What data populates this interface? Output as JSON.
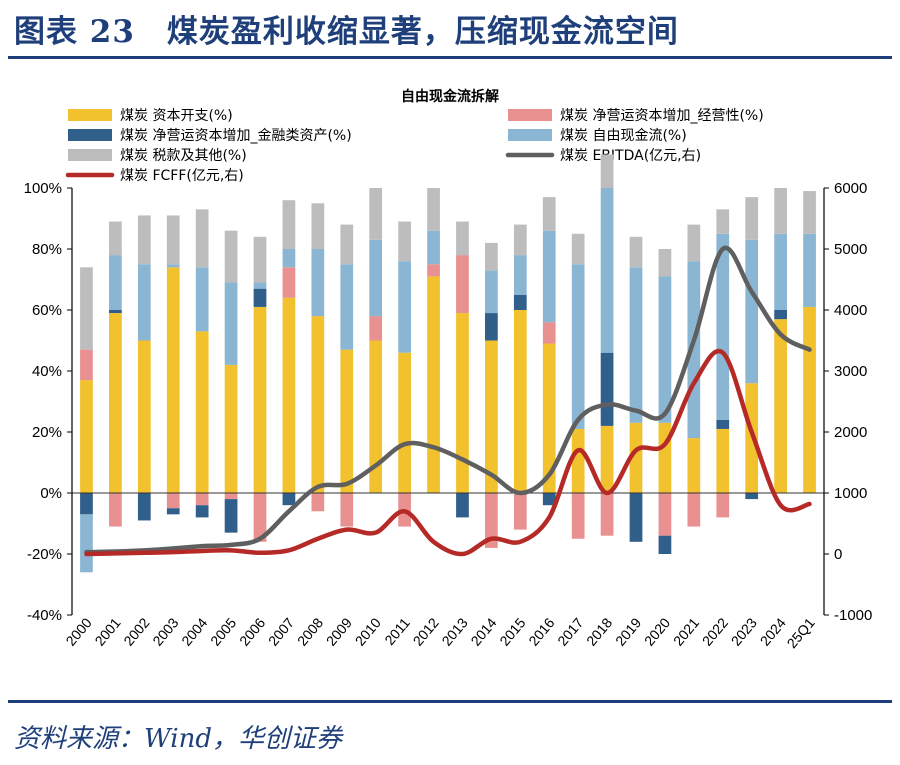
{
  "figure": {
    "title": "图表 23　煤炭盈利收缩显著，压缩现金流空间",
    "source": "资料来源：Wind，华创证券"
  },
  "chart_data": {
    "type": "bar+line",
    "title": "自由现金流拆解",
    "categories": [
      "2000",
      "2001",
      "2002",
      "2003",
      "2004",
      "2005",
      "2006",
      "2007",
      "2008",
      "2009",
      "2010",
      "2011",
      "2012",
      "2013",
      "2014",
      "2015",
      "2016",
      "2017",
      "2018",
      "2019",
      "2020",
      "2021",
      "2022",
      "2023",
      "2024",
      "25Q1"
    ],
    "series": [
      {
        "name": "煤炭 资本开支(%)",
        "kind": "bar",
        "axis": "left",
        "color": "#f2c12e",
        "values": [
          37,
          59,
          50,
          74,
          53,
          42,
          61,
          64,
          58,
          47,
          50,
          46,
          71,
          59,
          50,
          60,
          49,
          21,
          22,
          23,
          23,
          18,
          21,
          36,
          57,
          61
        ]
      },
      {
        "name": "煤炭 净营运资本增加_经营性(%)",
        "kind": "bar",
        "axis": "left",
        "color": "#e99090",
        "values": [
          10,
          -11,
          0,
          -5,
          -4,
          -2,
          -16,
          10,
          -6,
          -11,
          8,
          -11,
          4,
          19,
          -18,
          -12,
          7,
          -15,
          -14,
          0,
          -14,
          -11,
          -8,
          0,
          0,
          0
        ]
      },
      {
        "name": "煤炭 净营运资本增加_金融类资产(%)",
        "kind": "bar",
        "axis": "left",
        "color": "#2f5f8a",
        "values": [
          -7,
          1,
          -9,
          -2,
          -4,
          -11,
          6,
          -4,
          0,
          0,
          0,
          0,
          0,
          -8,
          9,
          5,
          -4,
          0,
          24,
          -16,
          -6,
          0,
          3,
          -2,
          3,
          0
        ]
      },
      {
        "name": "煤炭 自由现金流(%)",
        "kind": "bar",
        "axis": "left",
        "color": "#8ab6d3",
        "values": [
          -19,
          18,
          25,
          1,
          21,
          27,
          2,
          6,
          22,
          28,
          25,
          30,
          11,
          0,
          14,
          13,
          30,
          54,
          54,
          51,
          48,
          58,
          61,
          47,
          25,
          24
        ]
      },
      {
        "name": "煤炭 税款及其他(%)",
        "kind": "bar",
        "axis": "left",
        "color": "#bdbdbd",
        "values": [
          27,
          11,
          16,
          16,
          19,
          17,
          15,
          16,
          15,
          13,
          17,
          13,
          14,
          11,
          9,
          10,
          11,
          10,
          11,
          10,
          9,
          12,
          8,
          14,
          15,
          14
        ]
      },
      {
        "name": "煤炭 EBITDA(亿元,右)",
        "kind": "line",
        "axis": "right",
        "color": "#5f5f5f",
        "values": [
          30,
          40,
          60,
          90,
          130,
          150,
          250,
          700,
          1100,
          1150,
          1450,
          1800,
          1750,
          1550,
          1300,
          1000,
          1300,
          2200,
          2450,
          2350,
          2300,
          3500,
          5000,
          4300,
          3600,
          3350
        ]
      },
      {
        "name": "煤炭 FCFF(亿元,右)",
        "kind": "line",
        "axis": "right",
        "color": "#b52a26",
        "values": [
          0,
          10,
          20,
          30,
          50,
          60,
          20,
          60,
          250,
          400,
          350,
          700,
          200,
          0,
          250,
          200,
          600,
          1700,
          1000,
          1700,
          1800,
          2800,
          3300,
          2000,
          800,
          820
        ]
      }
    ],
    "y_left": {
      "min": -40,
      "max": 100,
      "step": 20,
      "ticks": [
        "-40%",
        "-20%",
        "0%",
        "20%",
        "40%",
        "60%",
        "80%",
        "100%"
      ]
    },
    "y_right": {
      "min": -1000,
      "max": 6000,
      "step": 1000,
      "ticks": [
        "-1000",
        "0",
        "1000",
        "2000",
        "3000",
        "4000",
        "5000",
        "6000"
      ]
    },
    "legend_position": "top",
    "grid": false
  }
}
